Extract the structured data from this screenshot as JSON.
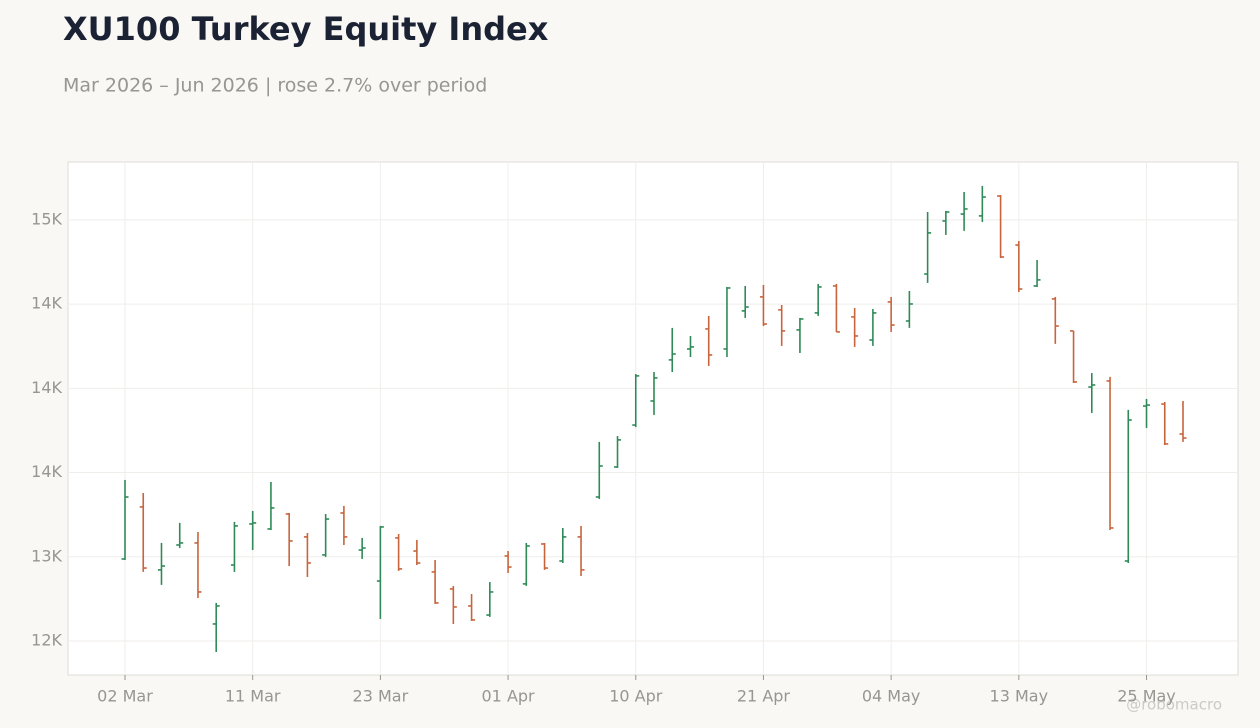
{
  "chart_data": {
    "type": "ohlc",
    "title": "XU100 Turkey Equity Index",
    "subtitle": "Mar 2026 – Jun 2026 | rose 2.7% over period",
    "watermark": "@robomacro",
    "up_color": "#2f8a57",
    "down_color": "#c8643c",
    "grid": true,
    "categories": [
      "02 Mar",
      null,
      null,
      null,
      null,
      null,
      null,
      "11 Mar",
      null,
      null,
      null,
      null,
      null,
      null,
      "23 Mar",
      null,
      null,
      null,
      null,
      null,
      null,
      "01 Apr",
      null,
      null,
      null,
      null,
      null,
      null,
      "10 Apr",
      null,
      null,
      null,
      null,
      null,
      null,
      "21 Apr",
      null,
      null,
      null,
      null,
      null,
      null,
      "04 May",
      null,
      null,
      null,
      null,
      null,
      null,
      "13 May",
      null,
      null,
      null,
      null,
      null,
      null,
      "25 May",
      null,
      null
    ],
    "open": [
      12987,
      13296,
      12922,
      13070,
      13082,
      12601,
      12951,
      13195,
      13165,
      13254,
      13118,
      13011,
      13260,
      13040,
      12856,
      13112,
      13034,
      12910,
      12809,
      12708,
      12654,
      13005,
      12839,
      13076,
      12975,
      13118,
      13355,
      13533,
      13782,
      13925,
      14169,
      14234,
      14353,
      14234,
      14460,
      14543,
      14466,
      14347,
      14448,
      14608,
      14424,
      14287,
      14513,
      14400,
      14679,
      14994,
      15035,
      15024,
      15142,
      14851,
      14608,
      14531,
      14341,
      14008,
      14044,
      12975,
      13895,
      13907,
      13729
    ],
    "high": [
      13456,
      13379,
      13082,
      13201,
      13147,
      12726,
      13207,
      13272,
      13444,
      13260,
      13141,
      13254,
      13302,
      13112,
      13183,
      13135,
      13100,
      12981,
      12827,
      12779,
      12850,
      13034,
      13082,
      13082,
      13171,
      13183,
      13682,
      13717,
      14085,
      14097,
      14359,
      14311,
      14430,
      14602,
      14608,
      14614,
      14495,
      14418,
      14620,
      14620,
      14477,
      14471,
      14543,
      14578,
      15047,
      15053,
      15166,
      15202,
      15148,
      14875,
      14762,
      14543,
      14341,
      14091,
      14068,
      13872,
      13937,
      13919,
      13925
    ],
    "low": [
      12981,
      12910,
      12833,
      13052,
      12755,
      12435,
      12910,
      13040,
      13159,
      12945,
      12880,
      12999,
      13070,
      12987,
      12631,
      12916,
      12951,
      12720,
      12601,
      12619,
      12643,
      12904,
      12827,
      12922,
      12963,
      12886,
      13343,
      13527,
      13770,
      13842,
      14097,
      14186,
      14133,
      14186,
      14418,
      14370,
      14252,
      14210,
      14430,
      14335,
      14246,
      14252,
      14335,
      14359,
      14626,
      14911,
      14935,
      14988,
      14774,
      14572,
      14602,
      14264,
      14032,
      13854,
      13159,
      12963,
      13765,
      13664,
      13682
    ],
    "close": [
      13355,
      12933,
      12945,
      13082,
      12791,
      12708,
      13183,
      13201,
      13290,
      13094,
      12963,
      13224,
      13118,
      13052,
      13177,
      12928,
      12963,
      12726,
      12702,
      12625,
      12791,
      12939,
      13064,
      12933,
      13118,
      12922,
      13539,
      13694,
      14074,
      14062,
      14204,
      14246,
      14198,
      14596,
      14483,
      14382,
      14341,
      14412,
      14602,
      14335,
      14311,
      14448,
      14376,
      14501,
      14923,
      15047,
      15065,
      15136,
      14780,
      14590,
      14644,
      14370,
      14038,
      14020,
      13171,
      13812,
      13901,
      13670,
      13705
    ],
    "ylim": [
      12298,
      15344
    ],
    "yticks": [
      {
        "value": 12500,
        "label": "12K"
      },
      {
        "value": 13000,
        "label": "13K"
      },
      {
        "value": 13500,
        "label": "14K"
      },
      {
        "value": 14000,
        "label": "14K"
      },
      {
        "value": 14500,
        "label": "14K"
      },
      {
        "value": 15000,
        "label": "15K"
      }
    ]
  }
}
